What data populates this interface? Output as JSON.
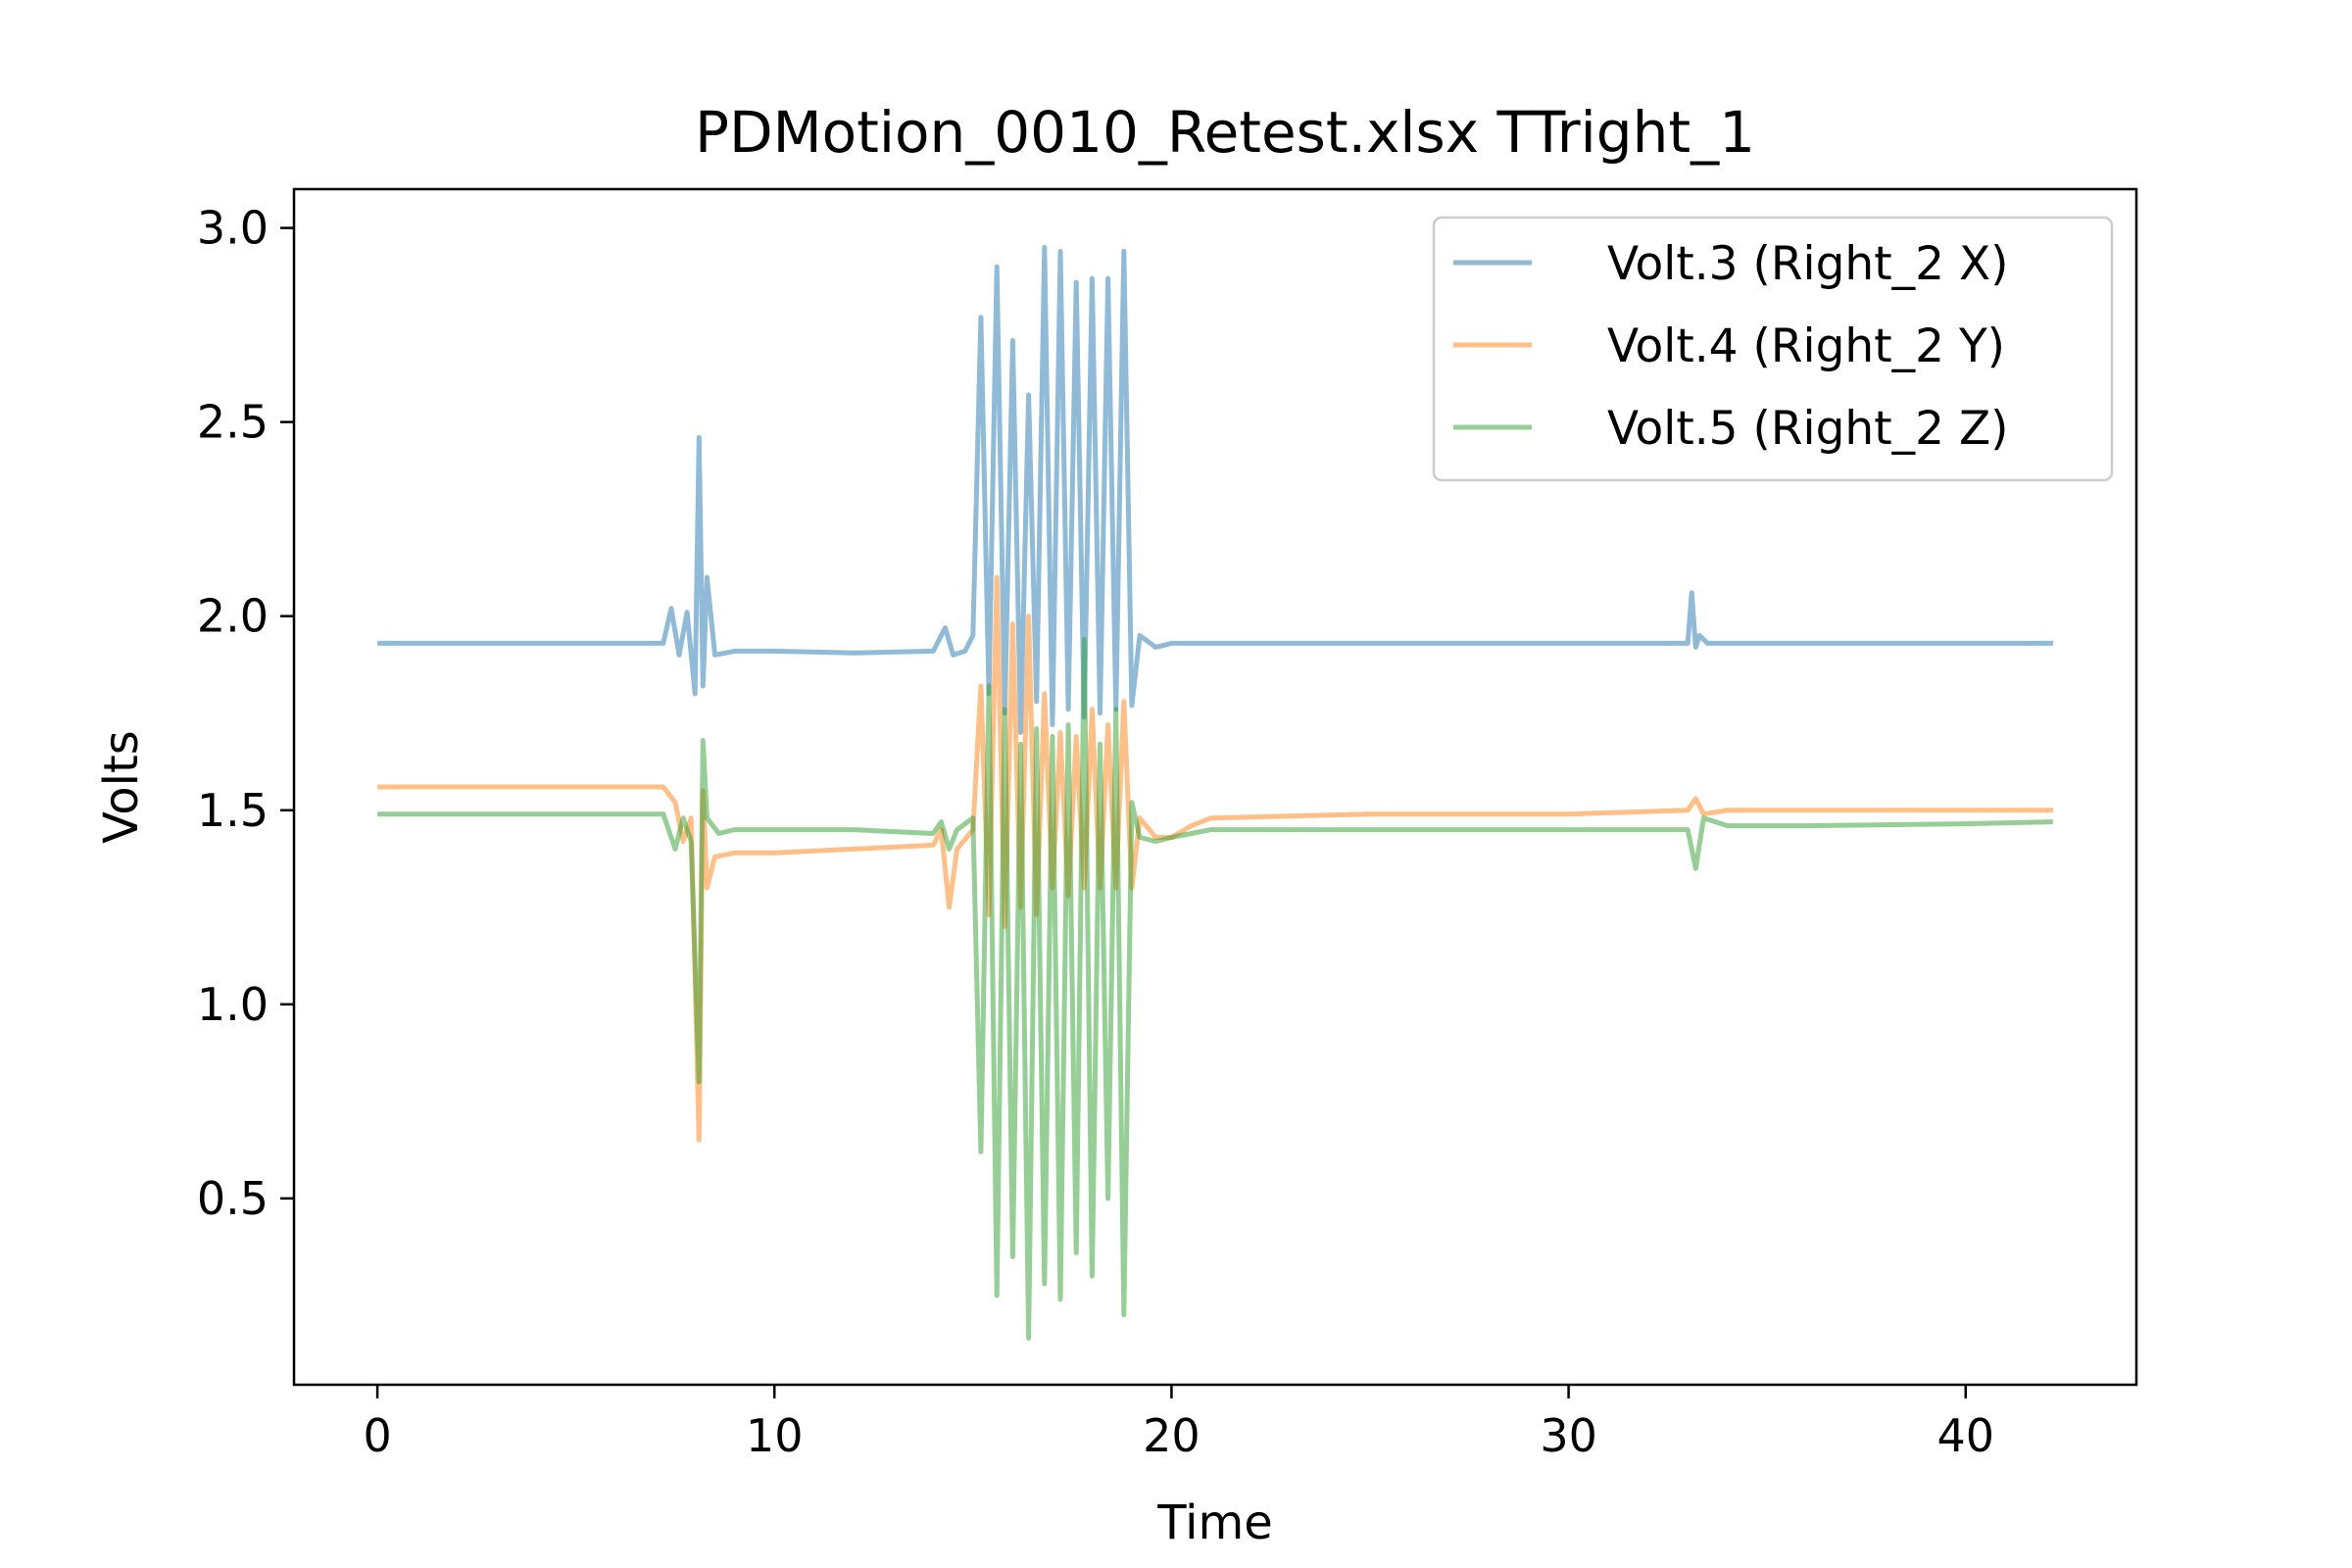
{
  "chart_data": {
    "type": "line",
    "title": "PDMotion_0010_Retest.xlsx TTright_1",
    "xlabel": "Time",
    "ylabel": "Volts",
    "xlim": [
      -2.1,
      44.3
    ],
    "ylim": [
      0.02,
      3.1
    ],
    "xticks": [
      0,
      10,
      20,
      30,
      40
    ],
    "xtick_labels": [
      "0",
      "10",
      "20",
      "30",
      "40"
    ],
    "yticks": [
      0.5,
      1.0,
      1.5,
      2.0,
      2.5,
      3.0
    ],
    "ytick_labels": [
      "0.5",
      "1.0",
      "1.5",
      "2.0",
      "2.5",
      "3.0"
    ],
    "grid": false,
    "legend_position": "top-right",
    "series": [
      {
        "name": "Volt.3 (Right_2 X)",
        "color": "#1f77b4",
        "alpha": 0.5,
        "x": [
          0,
          7.2,
          7.4,
          7.6,
          7.8,
          8.0,
          8.1,
          8.2,
          8.3,
          8.5,
          9,
          10,
          12,
          14,
          14.3,
          14.5,
          14.8,
          15.0,
          15.2,
          15.4,
          15.6,
          15.8,
          16.0,
          16.2,
          16.4,
          16.6,
          16.8,
          17.0,
          17.2,
          17.4,
          17.6,
          17.8,
          18.0,
          18.2,
          18.4,
          18.6,
          18.8,
          19.0,
          19.2,
          19.6,
          20,
          21,
          25,
          30,
          33.0,
          33.1,
          33.2,
          33.3,
          33.5,
          34,
          36,
          40,
          42.2
        ],
        "y": [
          1.93,
          1.93,
          2.02,
          1.9,
          2.01,
          1.8,
          2.46,
          1.82,
          2.1,
          1.9,
          1.91,
          1.91,
          1.905,
          1.91,
          1.97,
          1.9,
          1.91,
          1.95,
          2.77,
          1.8,
          2.9,
          1.75,
          2.71,
          1.7,
          2.57,
          1.78,
          2.95,
          1.72,
          2.94,
          1.76,
          2.86,
          1.74,
          2.87,
          1.75,
          2.87,
          1.76,
          2.94,
          1.77,
          1.95,
          1.92,
          1.93,
          1.93,
          1.93,
          1.93,
          1.93,
          2.06,
          1.92,
          1.95,
          1.93,
          1.93,
          1.93,
          1.93,
          1.93
        ]
      },
      {
        "name": "Volt.4 (Right_2 Y)",
        "color": "#ff7f0e",
        "alpha": 0.5,
        "x": [
          0,
          7.2,
          7.5,
          7.7,
          7.9,
          8.1,
          8.2,
          8.3,
          8.5,
          9,
          10,
          12,
          14,
          14.2,
          14.4,
          14.6,
          15.0,
          15.2,
          15.4,
          15.6,
          15.8,
          16.0,
          16.2,
          16.4,
          16.6,
          16.8,
          17.0,
          17.2,
          17.4,
          17.6,
          17.8,
          18.0,
          18.2,
          18.4,
          18.6,
          18.8,
          19.0,
          19.2,
          19.6,
          20,
          20.5,
          21,
          25,
          30,
          33.0,
          33.2,
          33.4,
          34,
          36,
          40,
          42.2
        ],
        "y": [
          1.56,
          1.56,
          1.52,
          1.42,
          1.48,
          0.65,
          1.55,
          1.3,
          1.38,
          1.39,
          1.39,
          1.4,
          1.41,
          1.45,
          1.25,
          1.4,
          1.45,
          1.82,
          1.23,
          2.1,
          1.2,
          1.98,
          1.25,
          2.0,
          1.23,
          1.8,
          1.3,
          1.7,
          1.28,
          1.69,
          1.3,
          1.76,
          1.3,
          1.72,
          1.3,
          1.78,
          1.3,
          1.48,
          1.43,
          1.43,
          1.46,
          1.48,
          1.49,
          1.49,
          1.5,
          1.53,
          1.49,
          1.5,
          1.5,
          1.5,
          1.5
        ]
      },
      {
        "name": "Volt.5 (Right_2 Z)",
        "color": "#2ca02c",
        "alpha": 0.5,
        "x": [
          0,
          7.2,
          7.5,
          7.7,
          7.9,
          8.1,
          8.2,
          8.3,
          8.6,
          9,
          10,
          12,
          14,
          14.2,
          14.4,
          14.6,
          15.0,
          15.2,
          15.4,
          15.6,
          15.8,
          16.0,
          16.2,
          16.4,
          16.6,
          16.8,
          17.0,
          17.2,
          17.4,
          17.6,
          17.8,
          18.0,
          18.2,
          18.4,
          18.6,
          18.8,
          19.0,
          19.2,
          19.6,
          20,
          20.5,
          21,
          25,
          30,
          33.0,
          33.2,
          33.4,
          34,
          36,
          40,
          42.2
        ],
        "y": [
          1.49,
          1.49,
          1.4,
          1.48,
          1.42,
          0.8,
          1.68,
          1.48,
          1.44,
          1.45,
          1.45,
          1.45,
          1.44,
          1.47,
          1.4,
          1.45,
          1.48,
          0.62,
          1.82,
          0.25,
          1.76,
          0.35,
          1.67,
          0.14,
          1.71,
          0.28,
          1.69,
          0.24,
          1.72,
          0.36,
          1.94,
          0.3,
          1.67,
          0.5,
          1.76,
          0.2,
          1.52,
          1.43,
          1.42,
          1.43,
          1.44,
          1.45,
          1.45,
          1.45,
          1.45,
          1.35,
          1.48,
          1.46,
          1.46,
          1.465,
          1.47
        ]
      }
    ]
  }
}
